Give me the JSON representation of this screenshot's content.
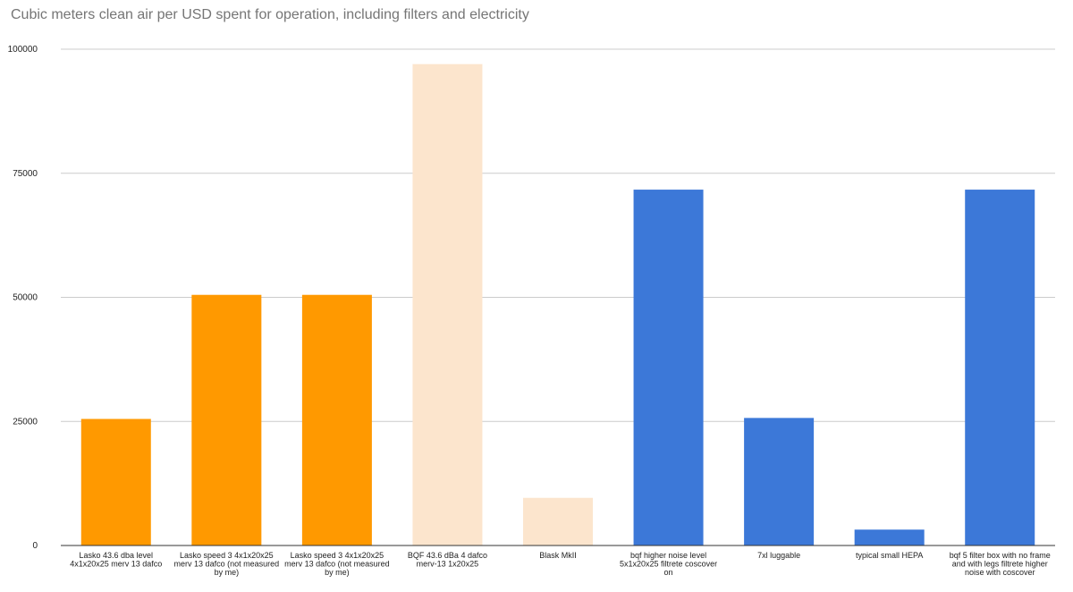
{
  "chart_data": {
    "type": "bar",
    "title": "Cubic meters clean air per USD spent for operation, including filters and electricity",
    "xlabel": "",
    "ylabel": "",
    "ylim": [
      0,
      100000
    ],
    "yticks": [
      "0",
      "25000",
      "50000",
      "75000",
      "100000"
    ],
    "ytick_values": [
      0,
      25000,
      50000,
      75000,
      100000
    ],
    "grid": true,
    "categories": [
      [
        "Lasko 43.6 dba level",
        "4x1x20x25 merv 13 dafco"
      ],
      [
        "Lasko speed 3 4x1x20x25",
        "merv 13 dafco (not measured",
        "by me)"
      ],
      [
        "Lasko speed 3 4x1x20x25",
        "merv 13 dafco (not measured",
        "by me)"
      ],
      [
        "BQF 43.6 dBa 4 dafco",
        "merv-13 1x20x25"
      ],
      [
        "Blask MkII"
      ],
      [
        "bqf higher noise level",
        "5x1x20x25 filtrete coscover",
        "on"
      ],
      [
        "7xl luggable"
      ],
      [
        "typical small HEPA"
      ],
      [
        "bqf 5 filter box with no frame",
        "and with legs filtrete higher",
        "noise with coscover"
      ]
    ],
    "values": [
      25500,
      50500,
      50500,
      97000,
      9600,
      71700,
      25700,
      3200,
      71700
    ],
    "colors": [
      "#ff9900",
      "#ff9900",
      "#ff9900",
      "#fce5cd",
      "#fce5cd",
      "#3c78d8",
      "#3c78d8",
      "#3c78d8",
      "#3c78d8"
    ]
  }
}
